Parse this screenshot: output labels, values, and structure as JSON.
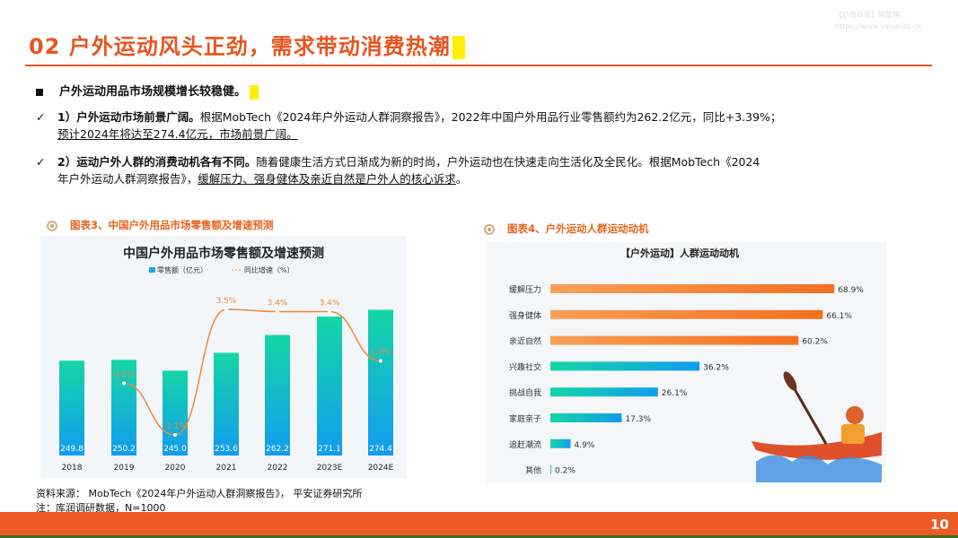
{
  "header": {
    "title": "02 户外运动风头正劲，需求带动消费热潮",
    "watermark": [
      "【价值目录】网整理：",
      "https://www.valuelist.cn"
    ]
  },
  "bullet": "户外运动用品市场规模增长较稳健。",
  "points": [
    {
      "check": "✓",
      "bold": "1）户外运动市场前景广阔。",
      "text": "根据MobTech《2024年户外运动人群洞察报告》，2022年中国户外用品行业零售额约为262.2亿元，同比+3.39%；",
      "line2": "预计2024年将达至274.4亿元，市场前景广阔。"
    },
    {
      "check": "✓",
      "bold": "2）运动户外人群的消费动机各有不同。",
      "text": "随着健康生活方式日渐成为新的时尚，户外运动也在快速走向生活化及全民化。根据MobTech《2024",
      "line2a": "年户外运动人群洞察报告》，",
      "line2u": "缓解压力、强身健体及亲近自然是户外人的核心诉求",
      "line2b": "。"
    }
  ],
  "figure3": {
    "caption": "图表3、中国户外用品市场零售额及增速预测"
  },
  "figure4": {
    "caption": "图表4、户外运动人群运动动机"
  },
  "chart_data": [
    {
      "type": "bar",
      "title": "中国户外用品市场零售额及增速预测",
      "categories": [
        "2018",
        "2019",
        "2020",
        "2021",
        "2022",
        "2023E",
        "2024E"
      ],
      "series": [
        {
          "name": "零售额（亿元）",
          "type": "bar",
          "values": [
            249.8,
            250.2,
            245.0,
            253.6,
            262.2,
            271.1,
            274.4
          ],
          "color": "#16a8e8"
        },
        {
          "name": "同比增速（%）",
          "type": "line",
          "values": [
            null,
            0.2,
            -2.1,
            3.5,
            3.4,
            3.4,
            1.2
          ],
          "labels": [
            null,
            "0.2%",
            "-2.1%",
            "3.5%",
            "3.4%",
            "3.4%",
            "1.2%"
          ],
          "color": "#f0883a"
        }
      ]
    },
    {
      "type": "bar",
      "orientation": "horizontal",
      "title": "【户外运动】人群运动动机",
      "categories": [
        "缓解压力",
        "强身健体",
        "亲近自然",
        "兴趣社交",
        "挑战自我",
        "家庭亲子",
        "追赶潮流",
        "其他"
      ],
      "values": [
        68.9,
        66.1,
        60.2,
        36.2,
        26.1,
        17.3,
        4.9,
        0.2
      ],
      "labels": [
        "68.9%",
        "66.1%",
        "60.2%",
        "36.2%",
        "26.1%",
        "17.3%",
        "4.9%",
        "0.2%"
      ],
      "colors": {
        "top": "#f57f2a",
        "rest": "#1aa6e8"
      }
    }
  ],
  "source": [
    "资料来源： MobTech《2024年户外运动人群洞察报告》， 平安证券研究所",
    "注：库润调研数据，N=1000"
  ],
  "footer": {
    "page": "10"
  }
}
